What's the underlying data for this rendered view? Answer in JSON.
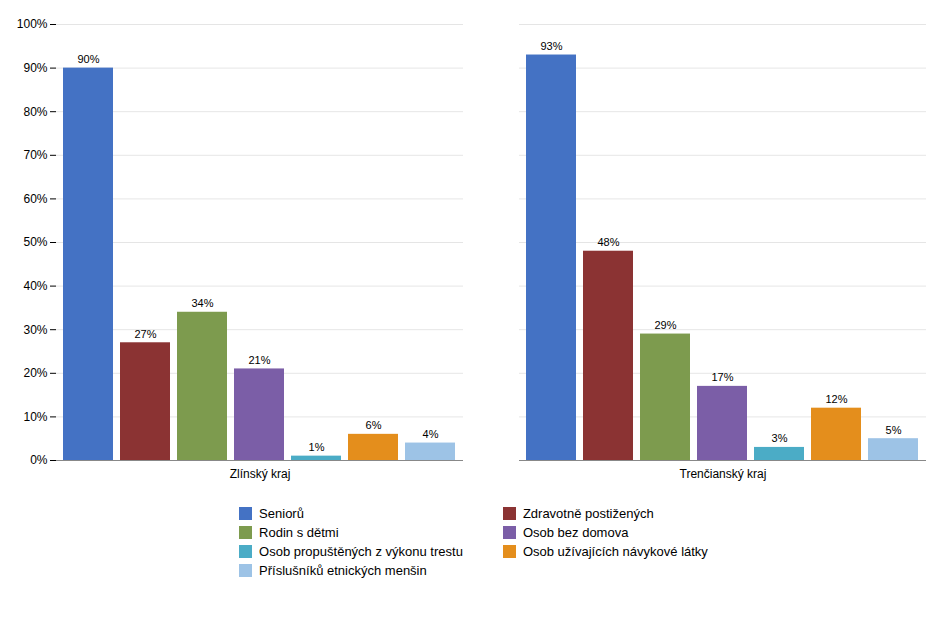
{
  "chart_data": {
    "type": "bar",
    "categories": [
      "Zlínský kraj",
      "Trenčianský kraj"
    ],
    "series": [
      {
        "name": "Seniorů",
        "color": "#4472C4",
        "values": [
          90,
          93
        ],
        "value_labels": [
          "90%",
          "93%"
        ]
      },
      {
        "name": "Zdravotně postižených",
        "color": "#8B3333",
        "values": [
          27,
          48
        ],
        "value_labels": [
          "27%",
          "48%"
        ]
      },
      {
        "name": "Rodin s dětmi",
        "color": "#7D9B4E",
        "values": [
          34,
          29
        ],
        "value_labels": [
          "34%",
          "29%"
        ]
      },
      {
        "name": "Osob bez domova",
        "color": "#7B5EA7",
        "values": [
          21,
          17
        ],
        "value_labels": [
          "21%",
          "17%"
        ]
      },
      {
        "name": "Osob propuštěných z výkonu trestu",
        "color": "#4BACC6",
        "values": [
          1,
          3
        ],
        "value_labels": [
          "1%",
          "3%"
        ]
      },
      {
        "name": "Osob užívajících návykové látky",
        "color": "#E48E1C",
        "values": [
          6,
          12
        ],
        "value_labels": [
          "6%",
          "12%"
        ]
      },
      {
        "name": "Příslušníků etnických menšin",
        "color": "#9DC3E6",
        "values": [
          4,
          5
        ],
        "value_labels": [
          "4%",
          "5%"
        ]
      }
    ],
    "ylim": [
      0,
      100
    ],
    "yticks": [
      {
        "value": 0,
        "label": "0%"
      },
      {
        "value": 10,
        "label": "10%"
      },
      {
        "value": 20,
        "label": "20%"
      },
      {
        "value": 30,
        "label": "30%"
      },
      {
        "value": 40,
        "label": "40%"
      },
      {
        "value": 50,
        "label": "50%"
      },
      {
        "value": 60,
        "label": "60%"
      },
      {
        "value": 70,
        "label": "70%"
      },
      {
        "value": 80,
        "label": "80%"
      },
      {
        "value": 90,
        "label": "90%"
      },
      {
        "value": 100,
        "label": "100%"
      }
    ],
    "grid": true,
    "data_labels": true,
    "legend": "bottom"
  }
}
